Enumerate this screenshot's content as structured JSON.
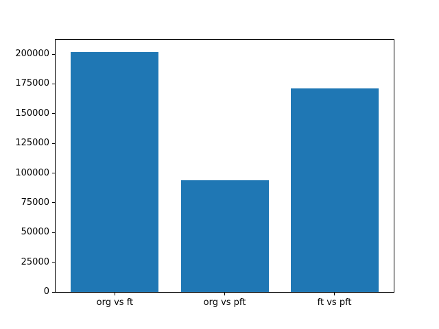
{
  "chart_data": {
    "type": "bar",
    "title": "",
    "xlabel": "",
    "ylabel": "",
    "categories": [
      "org vs ft",
      "org vs pft",
      "ft vs pft"
    ],
    "values": [
      202000,
      94000,
      171000
    ],
    "yticks": [
      0,
      25000,
      50000,
      75000,
      100000,
      125000,
      150000,
      175000,
      200000
    ],
    "ytick_labels": [
      "0",
      "25000",
      "50000",
      "75000",
      "100000",
      "125000",
      "150000",
      "175000",
      "200000"
    ],
    "ylim": [
      0,
      212100
    ],
    "grid": false,
    "legend": null,
    "bar_color": "#1f77b4"
  },
  "colors": {
    "background": "#ffffff",
    "spine": "#000000",
    "tick_text": "#000000",
    "bar": "#1f77b4"
  }
}
